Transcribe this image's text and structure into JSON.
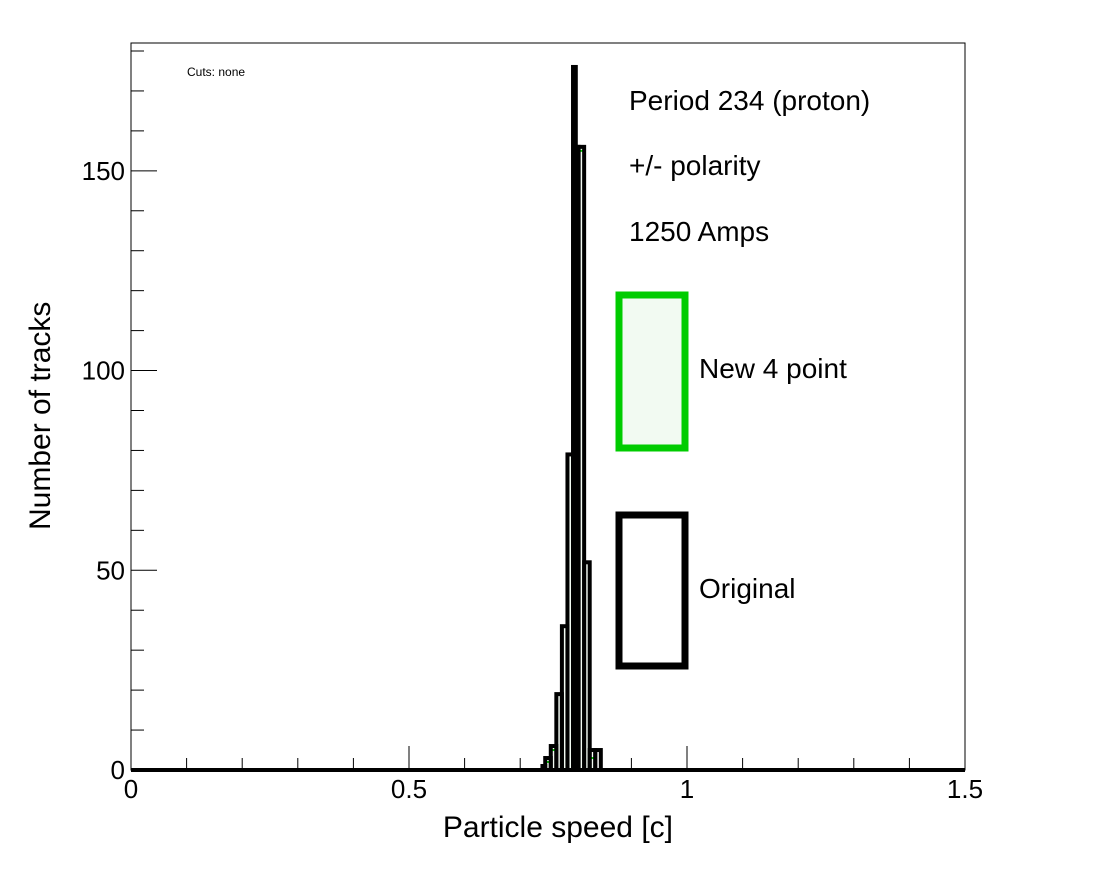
{
  "chart_data": {
    "type": "histogram",
    "xlabel": "Particle speed [c]",
    "ylabel": "Number of tracks",
    "xlim": [
      0,
      1.5
    ],
    "ylim": [
      0,
      182
    ],
    "x_ticks": [
      0,
      0.5,
      1,
      1.5
    ],
    "x_tick_labels": [
      "0",
      "0.5",
      "1",
      "1.5"
    ],
    "y_ticks": [
      0,
      50,
      100,
      150
    ],
    "y_tick_labels": [
      "0",
      "50",
      "100",
      "150"
    ],
    "grid": false,
    "annotations": {
      "cuts": "Cuts: none",
      "lines": [
        "Period 234 (proton)",
        "+/- polarity",
        "1250 Amps"
      ]
    },
    "legend": {
      "placement": "right",
      "entries": [
        {
          "name": "New 4 point",
          "color": "#00cc00",
          "fill": "#f2faf2"
        },
        {
          "name": "Original",
          "color": "#000000",
          "fill": "#ffffff"
        }
      ]
    },
    "series": [
      {
        "name": "New 4 point",
        "color": "#00cc00",
        "fill": "#f2faf2",
        "bins": [
          {
            "x0": 0.745,
            "x1": 0.755,
            "value": 2
          },
          {
            "x0": 0.755,
            "x1": 0.765,
            "value": 5
          },
          {
            "x0": 0.765,
            "x1": 0.775,
            "value": 19
          },
          {
            "x0": 0.775,
            "x1": 0.785,
            "value": 36
          },
          {
            "x0": 0.785,
            "x1": 0.795,
            "value": 79
          },
          {
            "x0": 0.795,
            "x1": 0.805,
            "value": 156
          },
          {
            "x0": 0.805,
            "x1": 0.815,
            "value": 155
          },
          {
            "x0": 0.815,
            "x1": 0.825,
            "value": 52
          },
          {
            "x0": 0.825,
            "x1": 0.835,
            "value": 3
          }
        ]
      },
      {
        "name": "Original",
        "color": "#000000",
        "fill": "none",
        "bins": [
          {
            "x0": 0.74,
            "x1": 0.745,
            "value": 1
          },
          {
            "x0": 0.745,
            "x1": 0.755,
            "value": 3
          },
          {
            "x0": 0.755,
            "x1": 0.765,
            "value": 6
          },
          {
            "x0": 0.765,
            "x1": 0.775,
            "value": 19
          },
          {
            "x0": 0.775,
            "x1": 0.785,
            "value": 36
          },
          {
            "x0": 0.785,
            "x1": 0.795,
            "value": 79
          },
          {
            "x0": 0.795,
            "x1": 0.8,
            "value": 176
          },
          {
            "x0": 0.8,
            "x1": 0.805,
            "value": 156
          },
          {
            "x0": 0.805,
            "x1": 0.815,
            "value": 156
          },
          {
            "x0": 0.815,
            "x1": 0.825,
            "value": 52
          },
          {
            "x0": 0.825,
            "x1": 0.835,
            "value": 5
          },
          {
            "x0": 0.835,
            "x1": 0.845,
            "value": 5
          }
        ]
      }
    ]
  }
}
